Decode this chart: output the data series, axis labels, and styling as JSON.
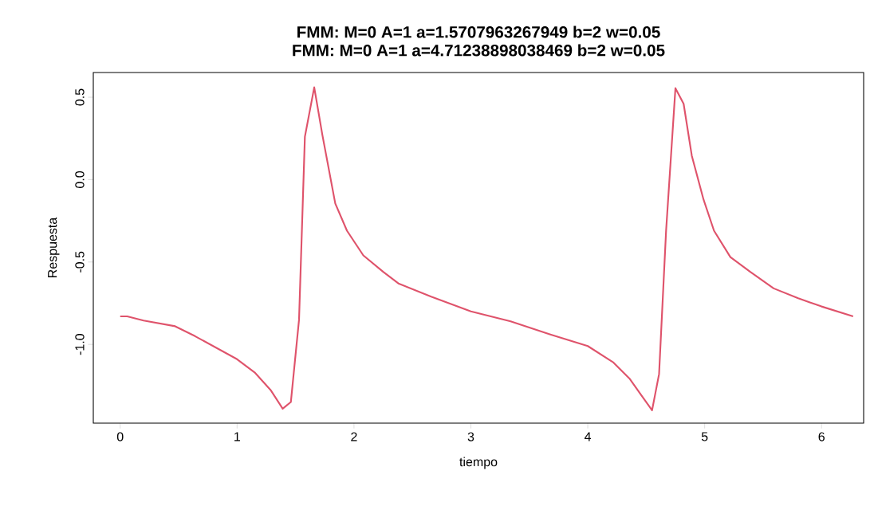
{
  "chart_data": {
    "type": "line",
    "title": "FMM:   M=0   A=1   a=1.5707963267949   b=2   w=0.05",
    "subtitle": "FMM:   M=0   A=1   a=4.71238898038469   b=2   w=0.05",
    "xlabel": "tiempo",
    "ylabel": "Respuesta",
    "xlim": [
      -0.23,
      6.36
    ],
    "ylim": [
      -1.478,
      0.65
    ],
    "xticks": [
      0,
      1,
      2,
      3,
      4,
      5,
      6
    ],
    "yticks": [
      {
        "value": -1.0,
        "label": "-1.0"
      },
      {
        "value": -0.5,
        "label": "-0.5"
      },
      {
        "value": 0.0,
        "label": "0.0"
      },
      {
        "value": 0.5,
        "label": "0.5"
      }
    ],
    "grid": false,
    "series": [
      {
        "color": "#df536b",
        "x": [
          0,
          0.06,
          0.2,
          0.47,
          0.64,
          1.0,
          1.15,
          1.29,
          1.39,
          1.46,
          1.53,
          1.58,
          1.66,
          1.73,
          1.84,
          1.94,
          2.08,
          2.25,
          2.38,
          2.66,
          3.0,
          3.34,
          3.68,
          4.0,
          4.22,
          4.36,
          4.46,
          4.55,
          4.61,
          4.67,
          4.75,
          4.82,
          4.89,
          4.99,
          5.08,
          5.22,
          5.39,
          5.59,
          5.8,
          6.0,
          6.27
        ],
        "values": [
          -0.83,
          -0.83,
          -0.855,
          -0.89,
          -0.95,
          -1.09,
          -1.17,
          -1.28,
          -1.39,
          -1.35,
          -0.85,
          0.26,
          0.56,
          0.27,
          -0.145,
          -0.31,
          -0.46,
          -0.56,
          -0.63,
          -0.71,
          -0.8,
          -0.86,
          -0.94,
          -1.01,
          -1.11,
          -1.21,
          -1.31,
          -1.4,
          -1.18,
          -0.31,
          0.555,
          0.46,
          0.145,
          -0.12,
          -0.31,
          -0.47,
          -0.56,
          -0.66,
          -0.72,
          -0.77,
          -0.83
        ]
      }
    ]
  }
}
